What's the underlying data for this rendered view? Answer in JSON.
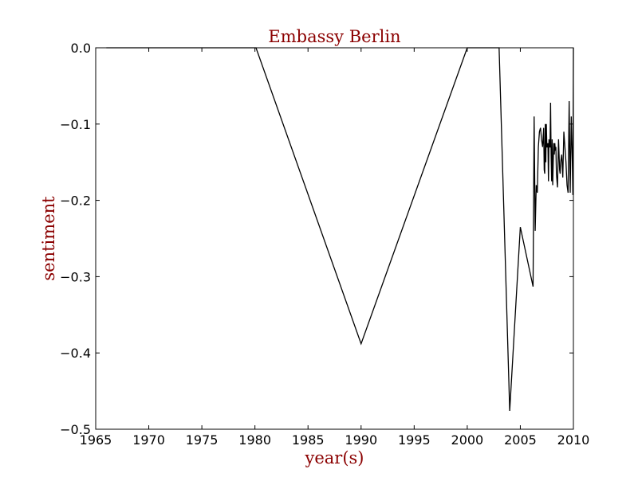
{
  "chart_data": {
    "type": "line",
    "title": "Embassy Berlin",
    "xlabel": "year(s)",
    "ylabel": "sentiment",
    "xlim": [
      1965,
      2010
    ],
    "ylim": [
      -0.5,
      0.0
    ],
    "xticks": [
      1965,
      1970,
      1975,
      1980,
      1985,
      1990,
      1995,
      2000,
      2005,
      2010
    ],
    "xtick_labels": [
      "1965",
      "1970",
      "1975",
      "1980",
      "1985",
      "1990",
      "1995",
      "2000",
      "2005",
      "2010"
    ],
    "yticks": [
      0.0,
      -0.1,
      -0.2,
      -0.3,
      -0.4,
      -0.5
    ],
    "ytick_labels": [
      "0.0",
      "−0.1",
      "−0.2",
      "−0.3",
      "−0.4",
      "−0.5"
    ],
    "grid": false,
    "legend": "none",
    "colors": {
      "line": "#000000",
      "title": "#8b0000",
      "axis_labels": "#8b0000"
    },
    "series": [
      {
        "x": [
          1966.0,
          1980.0,
          1980.1,
          1990.0,
          2000.0,
          2003.0,
          2004.0,
          2005.0,
          2006.2,
          2006.3,
          2006.4,
          2006.5,
          2006.6,
          2006.7,
          2006.8,
          2006.9,
          2007.0,
          2007.1,
          2007.2,
          2007.25,
          2007.3,
          2007.35,
          2007.4,
          2007.45,
          2007.5,
          2007.55,
          2007.6,
          2007.65,
          2007.7,
          2007.75,
          2007.8,
          2007.85,
          2007.9,
          2007.95,
          2008.0,
          2008.05,
          2008.1,
          2008.15,
          2008.2,
          2008.25,
          2008.3,
          2008.35,
          2008.4,
          2008.5,
          2008.6,
          2008.7,
          2008.75,
          2008.8,
          2008.9,
          2009.0,
          2009.1,
          2009.2,
          2009.3,
          2009.4,
          2009.5,
          2009.6,
          2009.7,
          2009.8,
          2009.9,
          2009.95,
          2010.0
        ],
        "y": [
          0.0,
          0.0,
          0.0,
          -0.388,
          0.0,
          0.0,
          -0.476,
          -0.235,
          -0.313,
          -0.09,
          -0.24,
          -0.18,
          -0.19,
          -0.13,
          -0.11,
          -0.105,
          -0.12,
          -0.13,
          -0.105,
          -0.16,
          -0.165,
          -0.1,
          -0.15,
          -0.1,
          -0.13,
          -0.13,
          -0.125,
          -0.175,
          -0.12,
          -0.13,
          -0.13,
          -0.072,
          -0.14,
          -0.175,
          -0.12,
          -0.18,
          -0.15,
          -0.125,
          -0.14,
          -0.125,
          -0.135,
          -0.13,
          -0.165,
          -0.183,
          -0.12,
          -0.16,
          -0.165,
          -0.15,
          -0.14,
          -0.17,
          -0.11,
          -0.13,
          -0.15,
          -0.18,
          -0.19,
          -0.07,
          -0.19,
          -0.09,
          -0.15,
          -0.193,
          0.0
        ]
      }
    ]
  }
}
